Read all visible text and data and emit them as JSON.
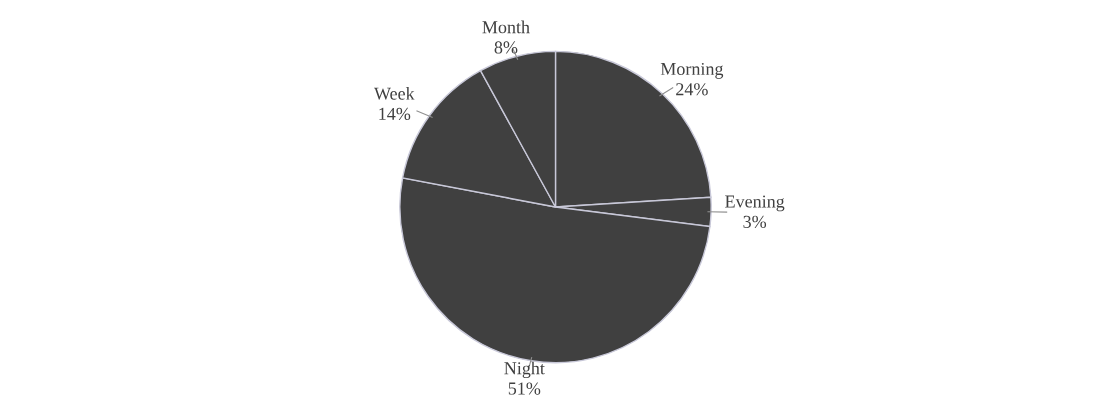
{
  "chart_data": {
    "type": "pie",
    "categories": [
      "Morning",
      "Evening",
      "Night",
      "Week",
      "Month"
    ],
    "values": [
      24,
      3,
      51,
      14,
      8
    ],
    "value_labels": [
      "24%",
      "3%",
      "51%",
      "14%",
      "8%"
    ],
    "colors": [
      "#404040",
      "#404040",
      "#404040",
      "#404040",
      "#404040"
    ],
    "legend": false
  }
}
